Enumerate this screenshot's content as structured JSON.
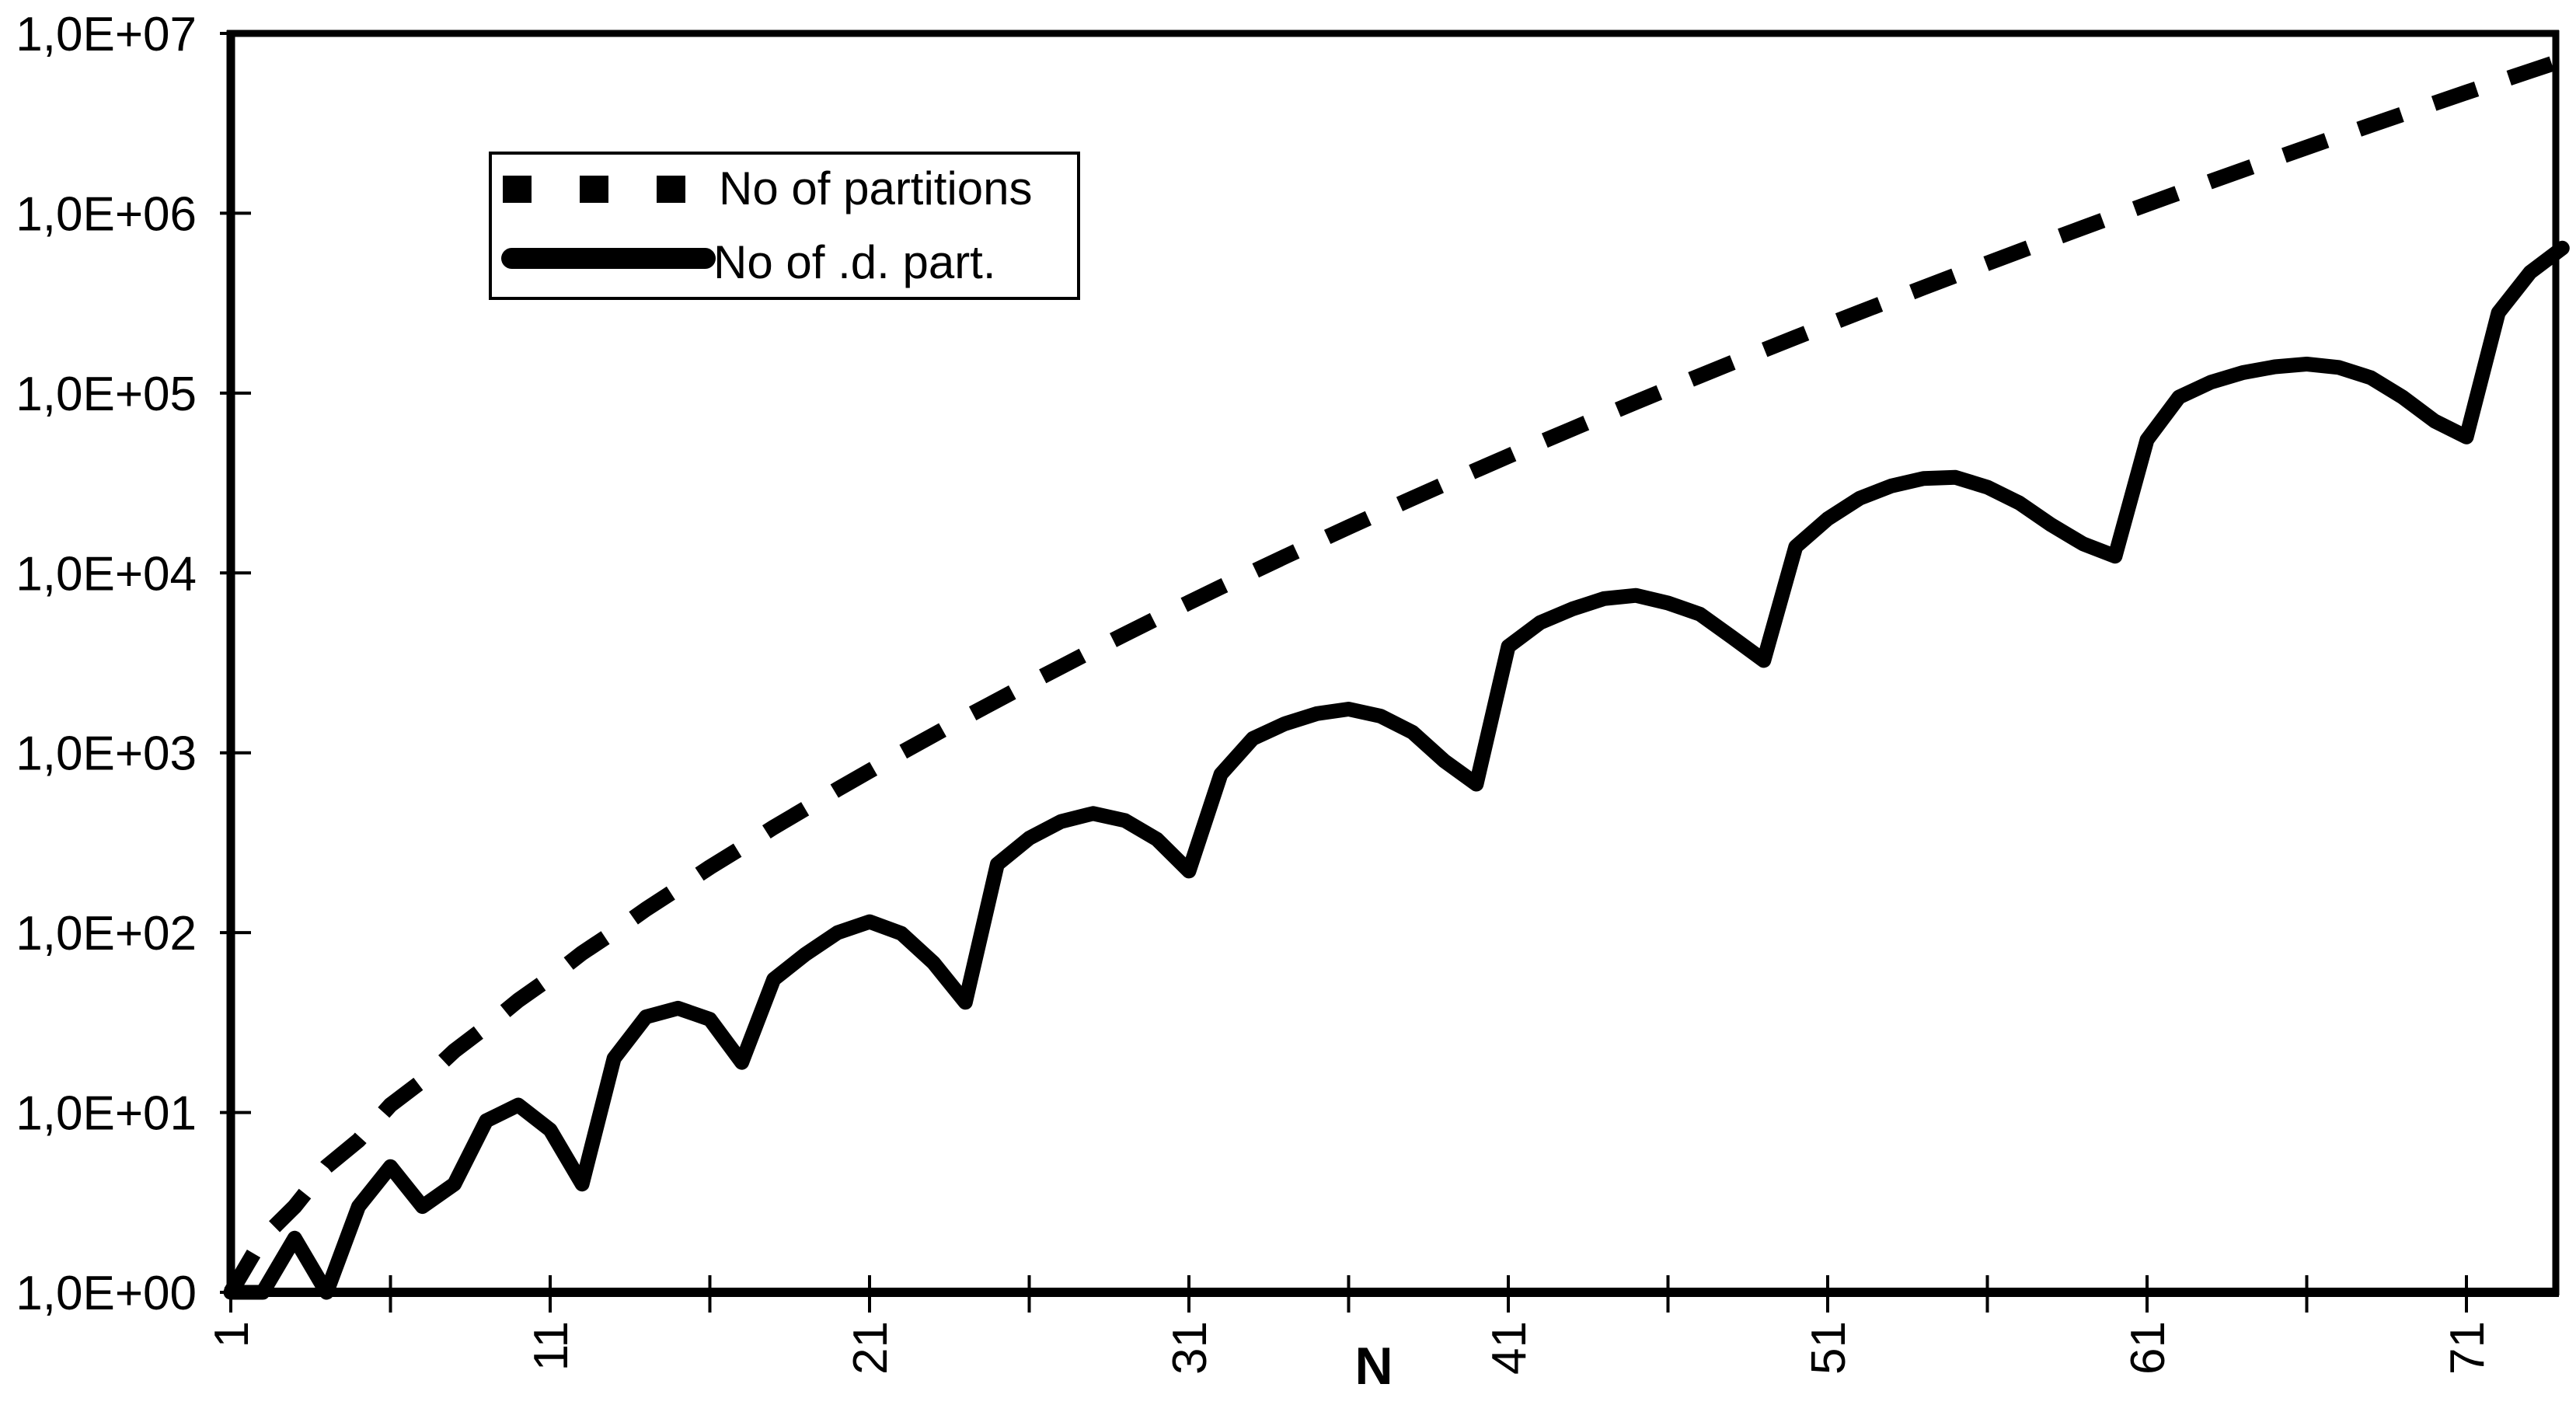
{
  "chart_data": {
    "type": "line",
    "title": "",
    "xlabel": "N",
    "ylabel": "",
    "y_scale": "log",
    "ylim": [
      1,
      10000000
    ],
    "grid": false,
    "legend_position": "upper-left-inside",
    "line_color": "#000000",
    "background_color": "#ffffff",
    "x_tick_labels": [
      "1",
      "11",
      "21",
      "31",
      "41",
      "51",
      "61",
      "71"
    ],
    "x_minor_tick_step": 5,
    "y_tick_labels": [
      "1,0E+00",
      "1,0E+01",
      "1,0E+02",
      "1,0E+03",
      "1,0E+04",
      "1,0E+05",
      "1,0E+06",
      "1,0E+07"
    ],
    "x": [
      1,
      2,
      3,
      4,
      5,
      6,
      7,
      8,
      9,
      10,
      11,
      12,
      13,
      14,
      15,
      16,
      17,
      18,
      19,
      20,
      21,
      22,
      23,
      24,
      25,
      26,
      27,
      28,
      29,
      30,
      31,
      32,
      33,
      34,
      35,
      36,
      37,
      38,
      39,
      40,
      41,
      42,
      43,
      44,
      45,
      46,
      47,
      48,
      49,
      50,
      51,
      52,
      53,
      54,
      55,
      56,
      57,
      58,
      59,
      60,
      61,
      62,
      63,
      64,
      65,
      66,
      67,
      68,
      69,
      70,
      71,
      72,
      73,
      74
    ],
    "series": [
      {
        "name": "No of partitions",
        "style": "dashed",
        "values": [
          1,
          2,
          3,
          5,
          7,
          11,
          15,
          22,
          30,
          42,
          56,
          77,
          101,
          135,
          176,
          231,
          297,
          385,
          490,
          627,
          792,
          1002,
          1255,
          1575,
          1958,
          2436,
          3010,
          3718,
          4565,
          5604,
          6842,
          8349,
          10143,
          12310,
          14883,
          17977,
          21637,
          26015,
          31185,
          37338,
          44583,
          53174,
          63261,
          75175,
          89134,
          105558,
          124754,
          147273,
          173525,
          204226,
          239943,
          281589,
          329931,
          386155,
          451276,
          526823,
          614154,
          715220,
          831820,
          966467,
          1121505,
          1300156,
          1505499,
          1741630,
          2012558,
          2323520,
          2679689,
          3087735,
          3554345,
          4087968,
          4697205,
          5392783,
          6185689,
          7089500
        ]
      },
      {
        "name": "No of .d. part.",
        "style": "solid",
        "values": [
          1,
          1,
          2,
          1,
          3,
          5,
          3,
          4,
          9,
          11,
          8,
          4,
          20,
          34,
          38,
          33,
          19,
          55,
          76,
          100,
          115,
          99,
          68,
          41,
          240,
          335,
          415,
          460,
          420,
          330,
          220,
          760,
          1200,
          1450,
          1650,
          1750,
          1600,
          1300,
          900,
          670,
          3900,
          5300,
          6300,
          7200,
          7500,
          6800,
          5900,
          4400,
          3260,
          14000,
          20000,
          26000,
          30500,
          33500,
          34000,
          30000,
          24500,
          18500,
          14500,
          12400,
          55000,
          95000,
          115000,
          130000,
          140000,
          145000,
          139000,
          122000,
          95000,
          70000,
          57000,
          280000,
          470000,
          640000
        ]
      }
    ]
  }
}
